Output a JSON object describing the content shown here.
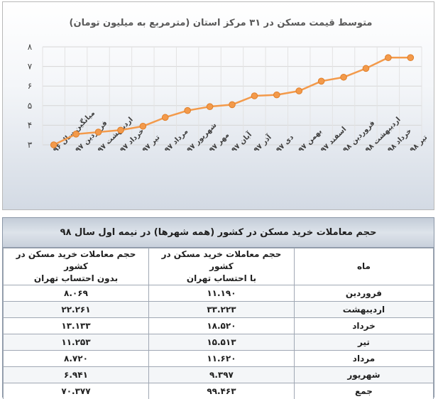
{
  "chart_data": {
    "type": "line",
    "title": "متوسط قیمت مسکن در ۳۱ مرکز استان (مترمربع به میلیون تومان)",
    "categories": [
      "میانگین سال ۹۶",
      "فروردین ۹۷",
      "اردیبهشت ۹۷",
      "خرداد ۹۷",
      "تیر ۹۷",
      "مرداد ۹۷",
      "شهریور ۹۷",
      "مهر ۹۷",
      "آبان ۹۷",
      "آذر ۹۷",
      "دی ۹۷",
      "بهمن ۹۷",
      "اسفند ۹۷",
      "فروردین ۹۸",
      "اردیبهشت ۹۸",
      "خرداد ۹۸",
      "تیر ۹۸"
    ],
    "values": [
      3.0,
      3.55,
      3.65,
      3.75,
      3.95,
      4.4,
      4.75,
      4.95,
      5.05,
      5.5,
      5.55,
      5.75,
      6.25,
      6.45,
      6.9,
      7.45,
      7.45
    ],
    "ylim": [
      3,
      8
    ],
    "yticks": [
      "۳",
      "۴",
      "۵",
      "۶",
      "۷",
      "۸"
    ],
    "grid": true,
    "line_color": "#f39a4b",
    "marker_color": "#f39a4b"
  },
  "table": {
    "title": "حجم معاملات خرید مسکن در کشور (همه شهرها) در نیمه اول سال ۹۸",
    "headers": {
      "month": "ماه",
      "with_tehran": "حجم معاملات خرید مسکن در کشور\nبا احتساب تهران",
      "without_tehran": "حجم معاملات خرید مسکن در کشور\nبدون احتساب تهران"
    },
    "rows": [
      {
        "month": "فروردین",
        "with_tehran": "۱۱.۱۹۰",
        "without_tehran": "۸.۰۶۹"
      },
      {
        "month": "اردیبهشت",
        "with_tehran": "۳۳.۲۲۳",
        "without_tehran": "۲۲.۲۶۱"
      },
      {
        "month": "خرداد",
        "with_tehran": "۱۸.۵۲۰",
        "without_tehran": "۱۳.۱۳۳"
      },
      {
        "month": "تیر",
        "with_tehran": "۱۵.۵۱۳",
        "without_tehran": "۱۱.۲۵۳"
      },
      {
        "month": "مرداد",
        "with_tehran": "۱۱.۶۲۰",
        "without_tehran": "۸.۷۲۰"
      },
      {
        "month": "شهریور",
        "with_tehran": "۹.۳۹۷",
        "without_tehran": "۶.۹۴۱"
      },
      {
        "month": "جمع",
        "with_tehran": "۹۹.۴۶۳",
        "without_tehran": "۷۰.۳۷۷"
      }
    ]
  }
}
